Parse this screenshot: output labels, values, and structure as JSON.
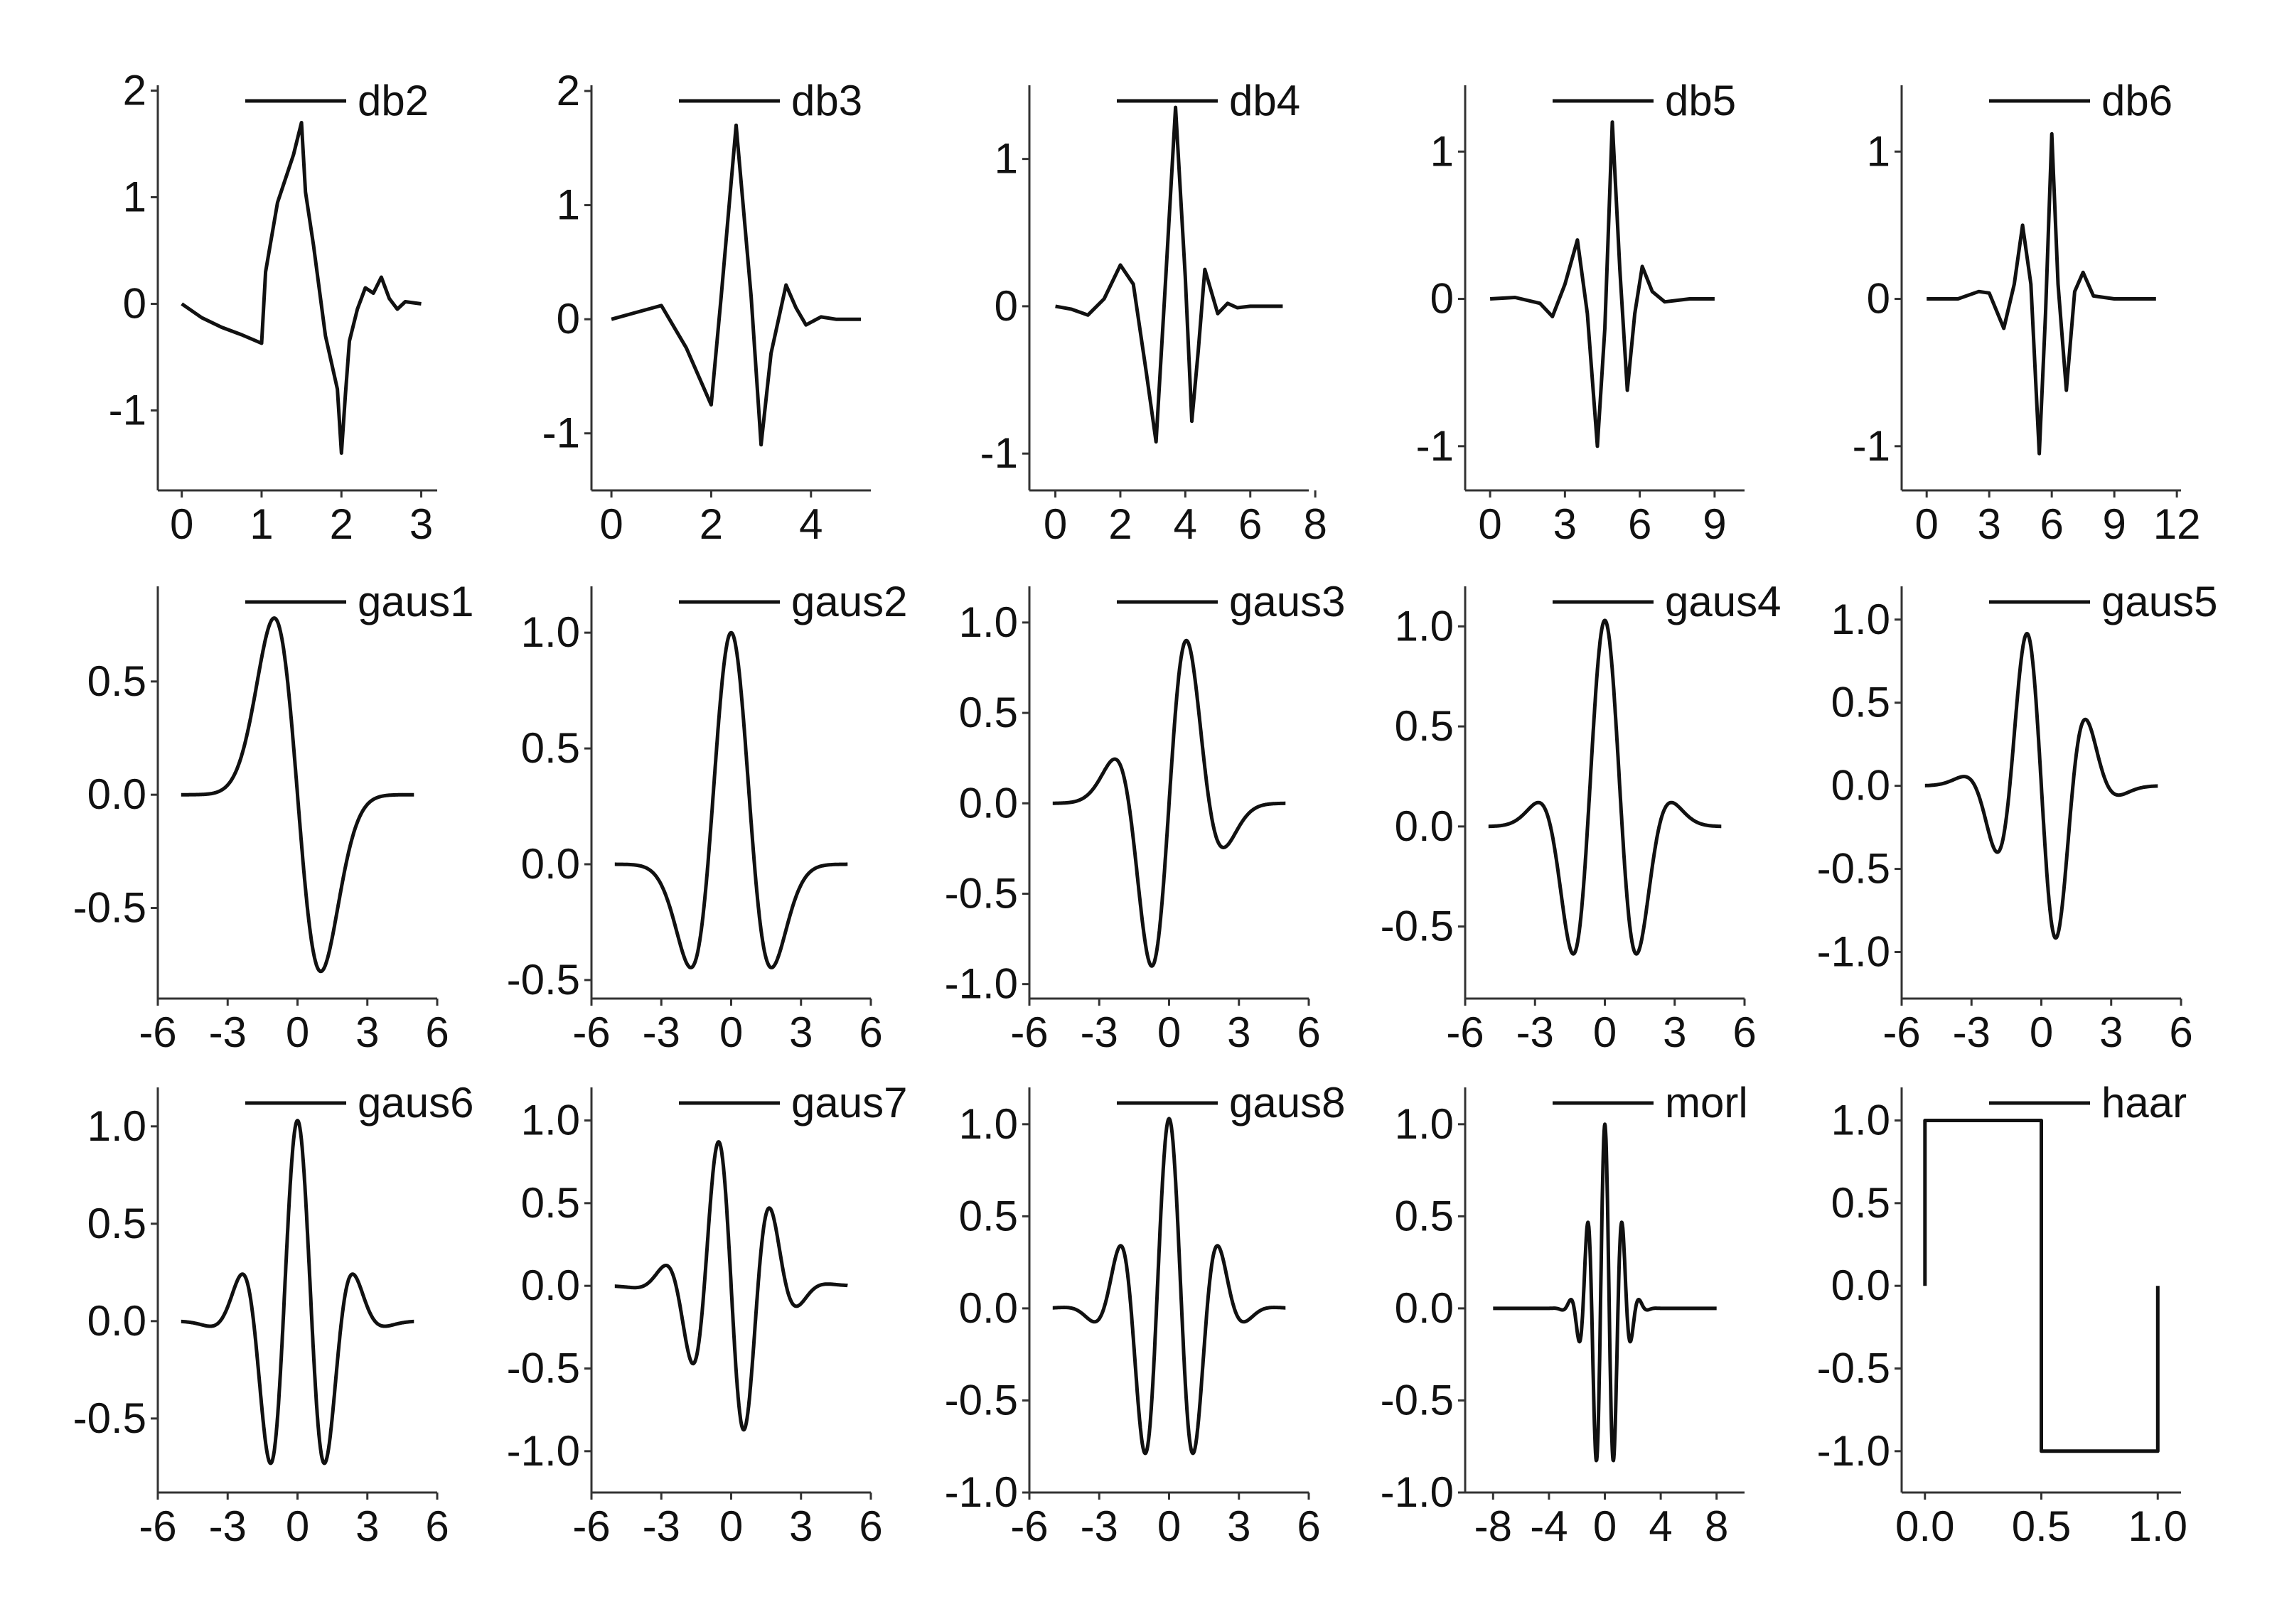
{
  "chart_data": [
    {
      "type": "line",
      "legend": [
        "db2"
      ],
      "xlim": [
        -0.3,
        3.2
      ],
      "ylim": [
        -1.75,
        2.05
      ],
      "xticks": [
        0,
        1,
        2,
        3
      ],
      "xtick_labels": [
        "0",
        "1",
        "2",
        "3"
      ],
      "yticks": [
        2,
        1,
        0,
        -1
      ],
      "ytick_labels": [
        "2",
        "1",
        "0",
        "-1"
      ],
      "series": [
        {
          "name": "db2",
          "x": [
            0,
            0.25,
            0.5,
            0.75,
            1,
            1.05,
            1.2,
            1.4,
            1.5,
            1.55,
            1.65,
            1.8,
            1.95,
            2,
            2.05,
            2.1,
            2.2,
            2.3,
            2.4,
            2.5,
            2.6,
            2.7,
            2.8,
            3
          ],
          "y": [
            0,
            -0.13,
            -0.22,
            -0.29,
            -0.37,
            0.3,
            0.95,
            1.4,
            1.7,
            1.05,
            0.55,
            -0.3,
            -0.8,
            -1.4,
            -0.85,
            -0.35,
            -0.05,
            0.15,
            0.1,
            0.25,
            0.05,
            -0.05,
            0.02,
            0
          ]
        }
      ]
    },
    {
      "type": "line",
      "legend": [
        "db3"
      ],
      "xlim": [
        -0.4,
        5.2
      ],
      "ylim": [
        -1.5,
        2.05
      ],
      "xticks": [
        0,
        2,
        4
      ],
      "xtick_labels": [
        "0",
        "2",
        "4"
      ],
      "yticks": [
        2,
        1,
        0,
        -1
      ],
      "ytick_labels": [
        "2",
        "1",
        "0",
        "-1"
      ],
      "series": [
        {
          "name": "db3",
          "x": [
            0,
            0.5,
            1,
            1.5,
            2,
            2.2,
            2.5,
            2.8,
            3,
            3.2,
            3.5,
            3.7,
            3.9,
            4.2,
            4.5,
            5
          ],
          "y": [
            0,
            0.06,
            0.12,
            -0.25,
            -0.75,
            0.2,
            1.7,
            0.2,
            -1.1,
            -0.3,
            0.3,
            0.1,
            -0.05,
            0.02,
            0,
            0
          ]
        }
      ]
    },
    {
      "type": "line",
      "legend": [
        "db4"
      ],
      "xlim": [
        -0.8,
        7.8
      ],
      "ylim": [
        -1.25,
        1.5
      ],
      "xticks": [
        0,
        2,
        4,
        6,
        8
      ],
      "xtick_labels": [
        "0",
        "2",
        "4",
        "6",
        "8"
      ],
      "yticks": [
        1,
        0,
        -1
      ],
      "ytick_labels": [
        "1",
        "0",
        "-1"
      ],
      "series": [
        {
          "name": "db4",
          "x": [
            0,
            0.5,
            1,
            1.5,
            2,
            2.4,
            2.8,
            3.1,
            3.4,
            3.7,
            4,
            4.2,
            4.4,
            4.6,
            4.8,
            5,
            5.3,
            5.6,
            6,
            7
          ],
          "y": [
            0,
            -0.02,
            -0.06,
            0.05,
            0.28,
            0.15,
            -0.45,
            -0.92,
            0.2,
            1.35,
            0.2,
            -0.78,
            -0.3,
            0.25,
            0.1,
            -0.05,
            0.02,
            -0.01,
            0,
            0
          ]
        }
      ]
    },
    {
      "type": "line",
      "legend": [
        "db5"
      ],
      "xlim": [
        -1,
        10.2
      ],
      "ylim": [
        -1.3,
        1.45
      ],
      "xticks": [
        0,
        3,
        6,
        9
      ],
      "xtick_labels": [
        "0",
        "3",
        "6",
        "9"
      ],
      "yticks": [
        1,
        0,
        -1
      ],
      "ytick_labels": [
        "1",
        "0",
        "-1"
      ],
      "series": [
        {
          "name": "db5",
          "x": [
            0,
            1,
            2,
            2.5,
            3,
            3.5,
            3.9,
            4.3,
            4.6,
            4.9,
            5.2,
            5.5,
            5.8,
            6.1,
            6.5,
            7,
            8,
            9
          ],
          "y": [
            0,
            0.01,
            -0.03,
            -0.12,
            0.1,
            0.4,
            -0.1,
            -1,
            -0.2,
            1.2,
            0.2,
            -0.62,
            -0.1,
            0.22,
            0.05,
            -0.02,
            0,
            0
          ]
        }
      ]
    },
    {
      "type": "line",
      "legend": [
        "db6"
      ],
      "xlim": [
        -1.2,
        12.2
      ],
      "ylim": [
        -1.3,
        1.45
      ],
      "xticks": [
        0,
        3,
        6,
        9,
        12
      ],
      "xtick_labels": [
        "0",
        "3",
        "6",
        "9",
        "12"
      ],
      "yticks": [
        1,
        0,
        -1
      ],
      "ytick_labels": [
        "1",
        "0",
        "-1"
      ],
      "series": [
        {
          "name": "db6",
          "x": [
            0,
            1.5,
            2.5,
            3,
            3.7,
            4.2,
            4.6,
            5,
            5.4,
            5.7,
            6,
            6.3,
            6.7,
            7.1,
            7.5,
            8,
            9,
            11
          ],
          "y": [
            0,
            0,
            0.05,
            0.04,
            -0.2,
            0.1,
            0.5,
            0.1,
            -1.05,
            -0.1,
            1.12,
            0.1,
            -0.62,
            0.05,
            0.18,
            0.02,
            0,
            0
          ]
        }
      ]
    },
    {
      "type": "line",
      "legend": [
        "gaus1"
      ],
      "xlim": [
        -6,
        6
      ],
      "ylim": [
        -0.9,
        0.92
      ],
      "xticks": [
        -6,
        -3,
        0,
        3,
        6
      ],
      "xtick_labels": [
        "-6",
        "-3",
        "0",
        "3",
        "6"
      ],
      "yticks": [
        0.5,
        0,
        -0.5
      ],
      "ytick_labels": [
        "0.5",
        "0.0",
        "-0.5"
      ],
      "series": [
        {
          "name": "gaus1",
          "fn": "gaus1",
          "xrange": [
            -5,
            5
          ]
        }
      ]
    },
    {
      "type": "line",
      "legend": [
        "gaus2"
      ],
      "xlim": [
        -6,
        6
      ],
      "ylim": [
        -0.58,
        1.2
      ],
      "xticks": [
        -6,
        -3,
        0,
        3,
        6
      ],
      "xtick_labels": [
        "-6",
        "-3",
        "0",
        "3",
        "6"
      ],
      "yticks": [
        1,
        0.5,
        0,
        -0.5
      ],
      "ytick_labels": [
        "1.0",
        "0.5",
        "0.0",
        "-0.5"
      ],
      "series": [
        {
          "name": "gaus2",
          "fn": "gaus2",
          "xrange": [
            -5,
            5
          ]
        }
      ]
    },
    {
      "type": "line",
      "legend": [
        "gaus3"
      ],
      "xlim": [
        -6,
        6
      ],
      "ylim": [
        -1.08,
        1.2
      ],
      "xticks": [
        -6,
        -3,
        0,
        3,
        6
      ],
      "xtick_labels": [
        "-6",
        "-3",
        "0",
        "3",
        "6"
      ],
      "yticks": [
        1,
        0.5,
        0,
        -0.5,
        -1
      ],
      "ytick_labels": [
        "1.0",
        "0.5",
        "0.0",
        "-0.5",
        "-1.0"
      ],
      "series": [
        {
          "name": "gaus3",
          "fn": "gaus3",
          "xrange": [
            -5,
            5
          ]
        }
      ]
    },
    {
      "type": "line",
      "legend": [
        "gaus4"
      ],
      "xlim": [
        -6,
        6
      ],
      "ylim": [
        -0.86,
        1.2
      ],
      "xticks": [
        -6,
        -3,
        0,
        3,
        6
      ],
      "xtick_labels": [
        "-6",
        "-3",
        "0",
        "3",
        "6"
      ],
      "yticks": [
        1,
        0.5,
        0,
        -0.5
      ],
      "ytick_labels": [
        "1.0",
        "0.5",
        "0.0",
        "-0.5"
      ],
      "series": [
        {
          "name": "gaus4",
          "fn": "gaus4",
          "xrange": [
            -5,
            5
          ]
        }
      ]
    },
    {
      "type": "line",
      "legend": [
        "gaus5"
      ],
      "xlim": [
        -6,
        6
      ],
      "ylim": [
        -1.28,
        1.2
      ],
      "xticks": [
        -6,
        -3,
        0,
        3,
        6
      ],
      "xtick_labels": [
        "-6",
        "-3",
        "0",
        "3",
        "6"
      ],
      "yticks": [
        1,
        0.5,
        0,
        -0.5,
        -1
      ],
      "ytick_labels": [
        "1.0",
        "0.5",
        "0.0",
        "-0.5",
        "-1.0"
      ],
      "series": [
        {
          "name": "gaus5",
          "fn": "gaus5",
          "xrange": [
            -5,
            5
          ]
        }
      ]
    },
    {
      "type": "line",
      "legend": [
        "gaus6"
      ],
      "xlim": [
        -6,
        6
      ],
      "ylim": [
        -0.88,
        1.2
      ],
      "xticks": [
        -6,
        -3,
        0,
        3,
        6
      ],
      "xtick_labels": [
        "-6",
        "-3",
        "0",
        "3",
        "6"
      ],
      "yticks": [
        1,
        0.5,
        0,
        -0.5
      ],
      "ytick_labels": [
        "1.0",
        "0.5",
        "0.0",
        "-0.5"
      ],
      "series": [
        {
          "name": "gaus6",
          "fn": "gaus6",
          "xrange": [
            -5,
            5
          ]
        }
      ]
    },
    {
      "type": "line",
      "legend": [
        "gaus7"
      ],
      "xlim": [
        -6,
        6
      ],
      "ylim": [
        -1.25,
        1.2
      ],
      "xticks": [
        -6,
        -3,
        0,
        3,
        6
      ],
      "xtick_labels": [
        "-6",
        "-3",
        "0",
        "3",
        "6"
      ],
      "yticks": [
        1,
        0.5,
        0,
        -0.5,
        -1
      ],
      "ytick_labels": [
        "1.0",
        "0.5",
        "0.0",
        "-0.5",
        "-1.0"
      ],
      "series": [
        {
          "name": "gaus7",
          "fn": "gaus7",
          "xrange": [
            -5,
            5
          ]
        }
      ]
    },
    {
      "type": "line",
      "legend": [
        "gaus8"
      ],
      "xlim": [
        -6,
        6
      ],
      "ylim": [
        -1.0,
        1.2
      ],
      "xticks": [
        -6,
        -3,
        0,
        3,
        6
      ],
      "xtick_labels": [
        "-6",
        "-3",
        "0",
        "3",
        "6"
      ],
      "yticks": [
        1,
        0.5,
        0,
        -0.5,
        -1
      ],
      "ytick_labels": [
        "1.0",
        "0.5",
        "0.0",
        "-0.5",
        "-1.0"
      ],
      "series": [
        {
          "name": "gaus8",
          "fn": "gaus8",
          "xrange": [
            -5,
            5
          ]
        }
      ]
    },
    {
      "type": "line",
      "legend": [
        "morl"
      ],
      "xlim": [
        -10,
        10
      ],
      "ylim": [
        -1.0,
        1.2
      ],
      "xticks": [
        -8,
        -4,
        0,
        4,
        8
      ],
      "xtick_labels": [
        "-8",
        "-4",
        "0",
        "4",
        "8"
      ],
      "yticks": [
        1,
        0.5,
        0,
        -0.5,
        -1
      ],
      "ytick_labels": [
        "1.0",
        "0.5",
        "0.0",
        "-0.5",
        "-1.0"
      ],
      "series": [
        {
          "name": "morl",
          "fn": "morl",
          "xrange": [
            -8,
            8
          ]
        }
      ]
    },
    {
      "type": "line",
      "legend": [
        "haar"
      ],
      "xlim": [
        -0.1,
        1.1
      ],
      "ylim": [
        -1.25,
        1.2
      ],
      "xticks": [
        0,
        0.5,
        1
      ],
      "xtick_labels": [
        "0.0",
        "0.5",
        "1.0"
      ],
      "yticks": [
        1,
        0.5,
        0,
        -0.5,
        -1
      ],
      "ytick_labels": [
        "1.0",
        "0.5",
        "0.0",
        "-0.5",
        "-1.0"
      ],
      "series": [
        {
          "name": "haar",
          "x": [
            0,
            0,
            0.5,
            0.5,
            1,
            1
          ],
          "y": [
            0,
            1,
            1,
            -1,
            -1,
            0
          ]
        }
      ]
    }
  ],
  "colors": {
    "line": "#111111",
    "axis": "#333333",
    "text": "#111111",
    "background": "#ffffff"
  }
}
